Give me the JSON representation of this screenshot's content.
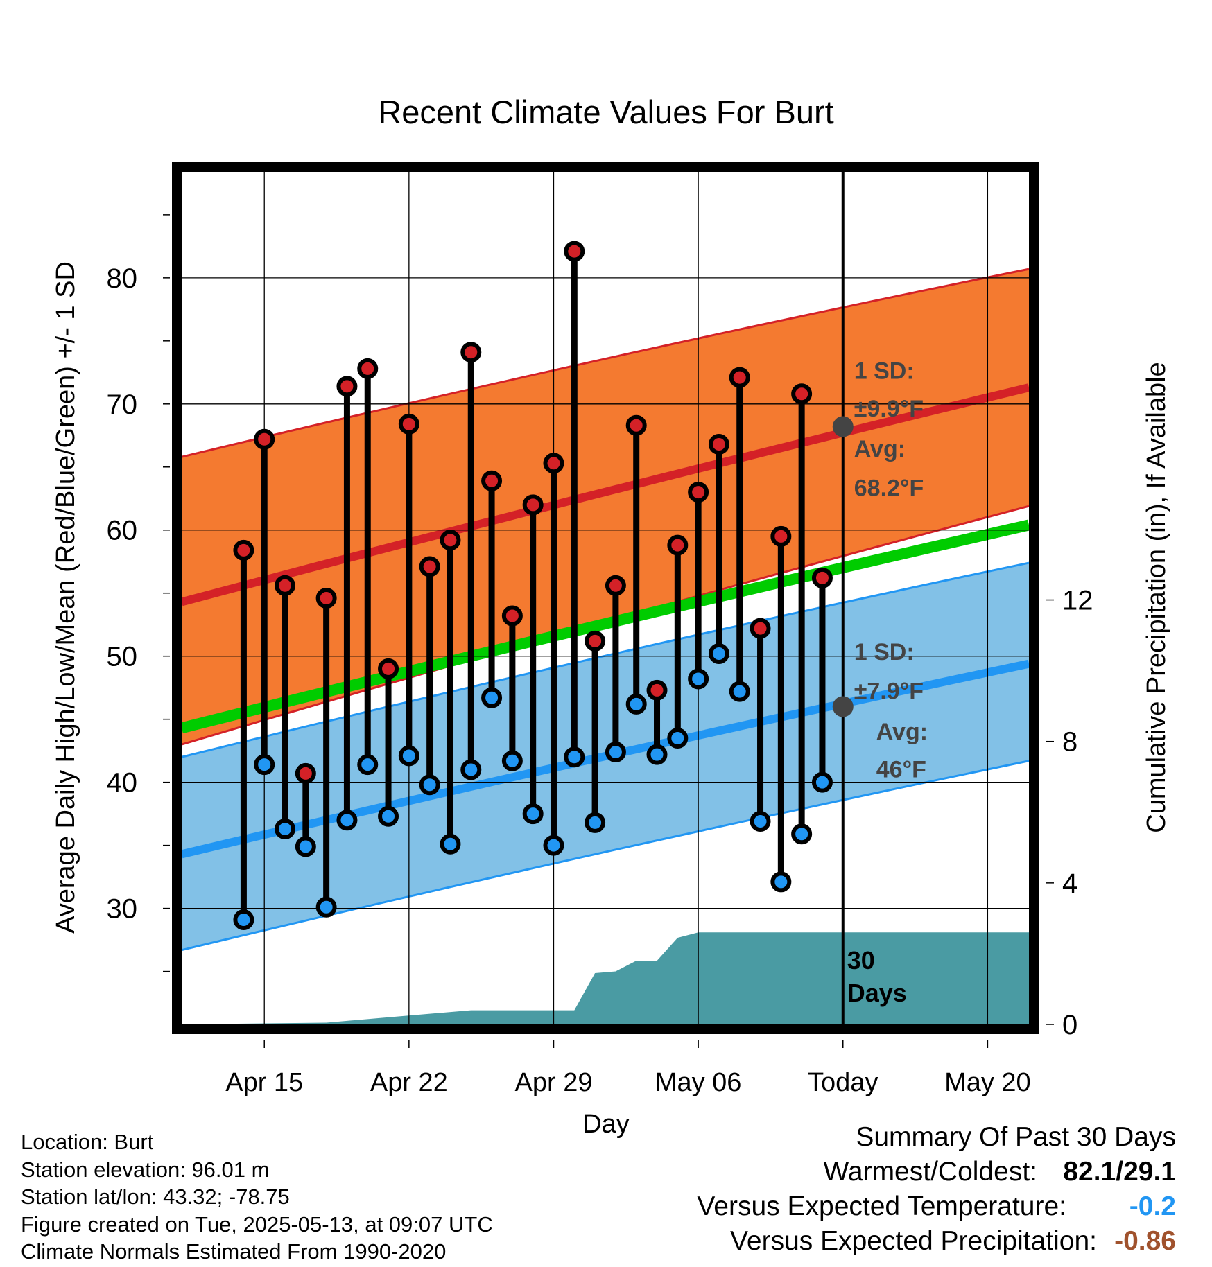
{
  "chart_data": {
    "type": "line",
    "title": "Recent Climate Values For Burt",
    "xlabel": "Day",
    "ylabel": "Average Daily High/Low/Mean (Red/Blue/Green) +/- 1 SD",
    "y2label": "Cumulative Precipitation (in), If Available",
    "x_ticks": [
      "Apr 15",
      "Apr 22",
      "Apr 29",
      "May 06",
      "Today",
      "May 20"
    ],
    "y_ticks": [
      30,
      40,
      50,
      60,
      70,
      80
    ],
    "y2_ticks": [
      0,
      4,
      8,
      12
    ],
    "ylim": [
      20.8,
      88.4
    ],
    "y2lim": [
      0,
      24.1
    ],
    "x_range": [
      "2025-04-11",
      "2025-05-22"
    ],
    "grid": true,
    "today": "2025-05-13",
    "days_label": "30 Days",
    "series": [
      {
        "name": "High",
        "color": "#d42127",
        "x": [
          "2025-04-14",
          "2025-04-15",
          "2025-04-16",
          "2025-04-17",
          "2025-04-18",
          "2025-04-19",
          "2025-04-20",
          "2025-04-21",
          "2025-04-22",
          "2025-04-23",
          "2025-04-24",
          "2025-04-25",
          "2025-04-26",
          "2025-04-27",
          "2025-04-28",
          "2025-04-29",
          "2025-04-30",
          "2025-05-01",
          "2025-05-02",
          "2025-05-03",
          "2025-05-04",
          "2025-05-05",
          "2025-05-06",
          "2025-05-07",
          "2025-05-08",
          "2025-05-09",
          "2025-05-10",
          "2025-05-11",
          "2025-05-12"
        ],
        "values": [
          58.4,
          67.2,
          55.6,
          40.7,
          54.6,
          71.4,
          72.8,
          49.0,
          68.4,
          57.1,
          59.2,
          74.1,
          63.9,
          53.2,
          62.0,
          65.3,
          82.1,
          51.2,
          55.6,
          68.3,
          47.3,
          58.8,
          63.0,
          66.8,
          72.1,
          52.2,
          59.5,
          70.8,
          56.2
        ]
      },
      {
        "name": "Low",
        "color": "#2196f3",
        "x": [
          "2025-04-14",
          "2025-04-15",
          "2025-04-16",
          "2025-04-17",
          "2025-04-18",
          "2025-04-19",
          "2025-04-20",
          "2025-04-21",
          "2025-04-22",
          "2025-04-23",
          "2025-04-24",
          "2025-04-25",
          "2025-04-26",
          "2025-04-27",
          "2025-04-28",
          "2025-04-29",
          "2025-04-30",
          "2025-05-01",
          "2025-05-02",
          "2025-05-03",
          "2025-05-04",
          "2025-05-05",
          "2025-05-06",
          "2025-05-07",
          "2025-05-08",
          "2025-05-09",
          "2025-05-10",
          "2025-05-11",
          "2025-05-12"
        ],
        "values": [
          29.1,
          41.4,
          36.3,
          34.9,
          30.1,
          37.0,
          41.4,
          37.3,
          42.1,
          39.8,
          35.1,
          41.0,
          46.7,
          41.7,
          37.5,
          35.0,
          42.0,
          36.8,
          42.4,
          46.2,
          42.2,
          43.5,
          48.2,
          50.2,
          47.2,
          36.9,
          32.1,
          35.9,
          40.0
        ]
      },
      {
        "name": "High Avg",
        "color": "#d42127",
        "x": [
          "2025-04-11",
          "2025-05-22"
        ],
        "values": [
          54.3,
          71.3
        ]
      },
      {
        "name": "Low Avg",
        "color": "#2196f3",
        "x": [
          "2025-04-11",
          "2025-05-22"
        ],
        "values": [
          34.3,
          49.4
        ]
      },
      {
        "name": "Mean Avg",
        "color": "#00cc00",
        "x": [
          "2025-04-11",
          "2025-05-22"
        ],
        "values": [
          44.3,
          60.4
        ]
      },
      {
        "name": "Cumulative Precipitation",
        "color": "#4a9ba3",
        "axis": "y2",
        "x": [
          "2025-04-11",
          "2025-04-18",
          "2025-04-21",
          "2025-04-25",
          "2025-04-30",
          "2025-05-01",
          "2025-05-02",
          "2025-05-03",
          "2025-05-04",
          "2025-05-05",
          "2025-05-06",
          "2025-05-22"
        ],
        "values": [
          0.0,
          0.05,
          0.2,
          0.4,
          0.4,
          1.45,
          1.5,
          1.8,
          1.8,
          2.45,
          2.6,
          2.6
        ]
      }
    ],
    "bands": [
      {
        "name": "High +/- 1 SD",
        "color": "#f47a30",
        "edge": "#d42127",
        "x": [
          "2025-04-11",
          "2025-05-22"
        ],
        "upper": [
          65.8,
          80.7
        ],
        "lower": [
          43.0,
          61.9
        ]
      },
      {
        "name": "Low +/- 1 SD",
        "color": "#82c1e7",
        "edge": "#2196f3",
        "x": [
          "2025-04-11",
          "2025-05-22"
        ],
        "upper": [
          42.0,
          57.4
        ],
        "lower": [
          26.7,
          41.7
        ]
      }
    ],
    "annotations": {
      "high_sd": [
        "1 SD:",
        "±9.9°F"
      ],
      "high_avg": [
        "Avg:",
        "68.2°F"
      ],
      "low_sd": [
        "1 SD:",
        "±7.9°F"
      ],
      "low_avg": [
        "Avg:",
        "46°F"
      ],
      "high_avg_today": 68.2,
      "low_avg_today": 46.0
    }
  },
  "station": {
    "location": "Location: Burt",
    "elevation": "Station elevation: 96.01 m",
    "latlon": "Station lat/lon: 43.32; -78.75",
    "created": "Figure created on Tue, 2025-05-13, at 09:07 UTC",
    "normals": "Climate Normals Estimated From 1990-2020"
  },
  "summary": {
    "heading": "Summary Of Past 30 Days",
    "warmest_label": "Warmest/Coldest:",
    "warmest_value": "82.1/29.1",
    "temp_label": "Versus Expected Temperature:",
    "temp_value": "-0.2",
    "temp_color": "#2196f3",
    "precip_label": "Versus Expected Precipitation:",
    "precip_value": "-0.86",
    "precip_color": "#a0522d"
  }
}
